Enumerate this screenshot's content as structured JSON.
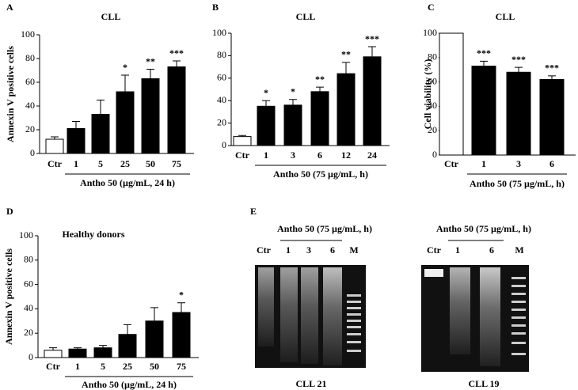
{
  "chart_data": [
    {
      "type": "bar",
      "panel": "A",
      "title": "CLL",
      "ylabel": "Annexin V positive cells",
      "xlabel": "Antho 50 (µg/mL, 24 h)",
      "categories": [
        "Ctr",
        "1",
        "5",
        "25",
        "50",
        "75"
      ],
      "values": [
        12,
        21,
        33,
        52,
        63,
        73
      ],
      "errors": [
        2,
        6,
        12,
        14,
        8,
        5
      ],
      "colors": [
        "#ffffff",
        "#000000",
        "#000000",
        "#000000",
        "#000000",
        "#000000"
      ],
      "annotations": [
        null,
        null,
        null,
        "*",
        "**",
        "***"
      ],
      "ylim": [
        0,
        100
      ],
      "yticks": [
        0,
        20,
        40,
        60,
        80,
        100
      ]
    },
    {
      "type": "bar",
      "panel": "B",
      "title": "CLL",
      "ylabel": null,
      "xlabel": "Antho 50 (75 µg/mL, h)",
      "categories": [
        "Ctr",
        "1",
        "3",
        "6",
        "12",
        "24"
      ],
      "values": [
        8,
        35,
        36,
        48,
        64,
        79
      ],
      "errors": [
        1,
        5,
        5,
        4,
        10,
        9
      ],
      "colors": [
        "#ffffff",
        "#000000",
        "#000000",
        "#000000",
        "#000000",
        "#000000"
      ],
      "annotations": [
        null,
        "*",
        "*",
        "**",
        "**",
        "***"
      ],
      "ylim": [
        0,
        100
      ],
      "yticks": [
        0,
        20,
        40,
        60,
        80,
        100
      ]
    },
    {
      "type": "bar",
      "panel": "C",
      "title": "CLL",
      "ylabel": "Cell viability (%)",
      "xlabel": "Antho 50 (75 µg/mL, h)",
      "categories": [
        "Ctr",
        "1",
        "3",
        "6"
      ],
      "values": [
        100,
        73,
        68,
        62
      ],
      "errors": [
        0,
        4,
        4,
        3
      ],
      "colors": [
        "#ffffff",
        "#000000",
        "#000000",
        "#000000"
      ],
      "annotations": [
        null,
        "***",
        "***",
        "***"
      ],
      "ylim": [
        0,
        100
      ],
      "yticks": [
        0,
        20,
        40,
        60,
        80,
        100
      ]
    },
    {
      "type": "bar",
      "panel": "D",
      "title": "Healthy donors",
      "ylabel": "Annexin V positive cells",
      "xlabel": "Antho 50 (µg/mL, 24 h)",
      "categories": [
        "Ctr",
        "1",
        "5",
        "25",
        "50",
        "75"
      ],
      "values": [
        6,
        7,
        8,
        19,
        30,
        37
      ],
      "errors": [
        2,
        1,
        2,
        8,
        11,
        8
      ],
      "colors": [
        "#ffffff",
        "#000000",
        "#000000",
        "#000000",
        "#000000",
        "#000000"
      ],
      "annotations": [
        null,
        null,
        null,
        null,
        null,
        "*"
      ],
      "ylim": [
        0,
        100
      ],
      "yticks": [
        0,
        20,
        40,
        60,
        80,
        100
      ]
    }
  ],
  "gel_panel": {
    "panel": "E",
    "gels": [
      {
        "header": "Antho 50 (75 µg/mL, h)",
        "lanes": [
          "Ctr",
          "1",
          "3",
          "6",
          "M"
        ],
        "caption": "CLL 21"
      },
      {
        "header": "Antho 50 (75 µg/mL, h)",
        "lanes": [
          "Ctr",
          "1",
          "6",
          "M"
        ],
        "caption": "CLL 19"
      }
    ]
  }
}
